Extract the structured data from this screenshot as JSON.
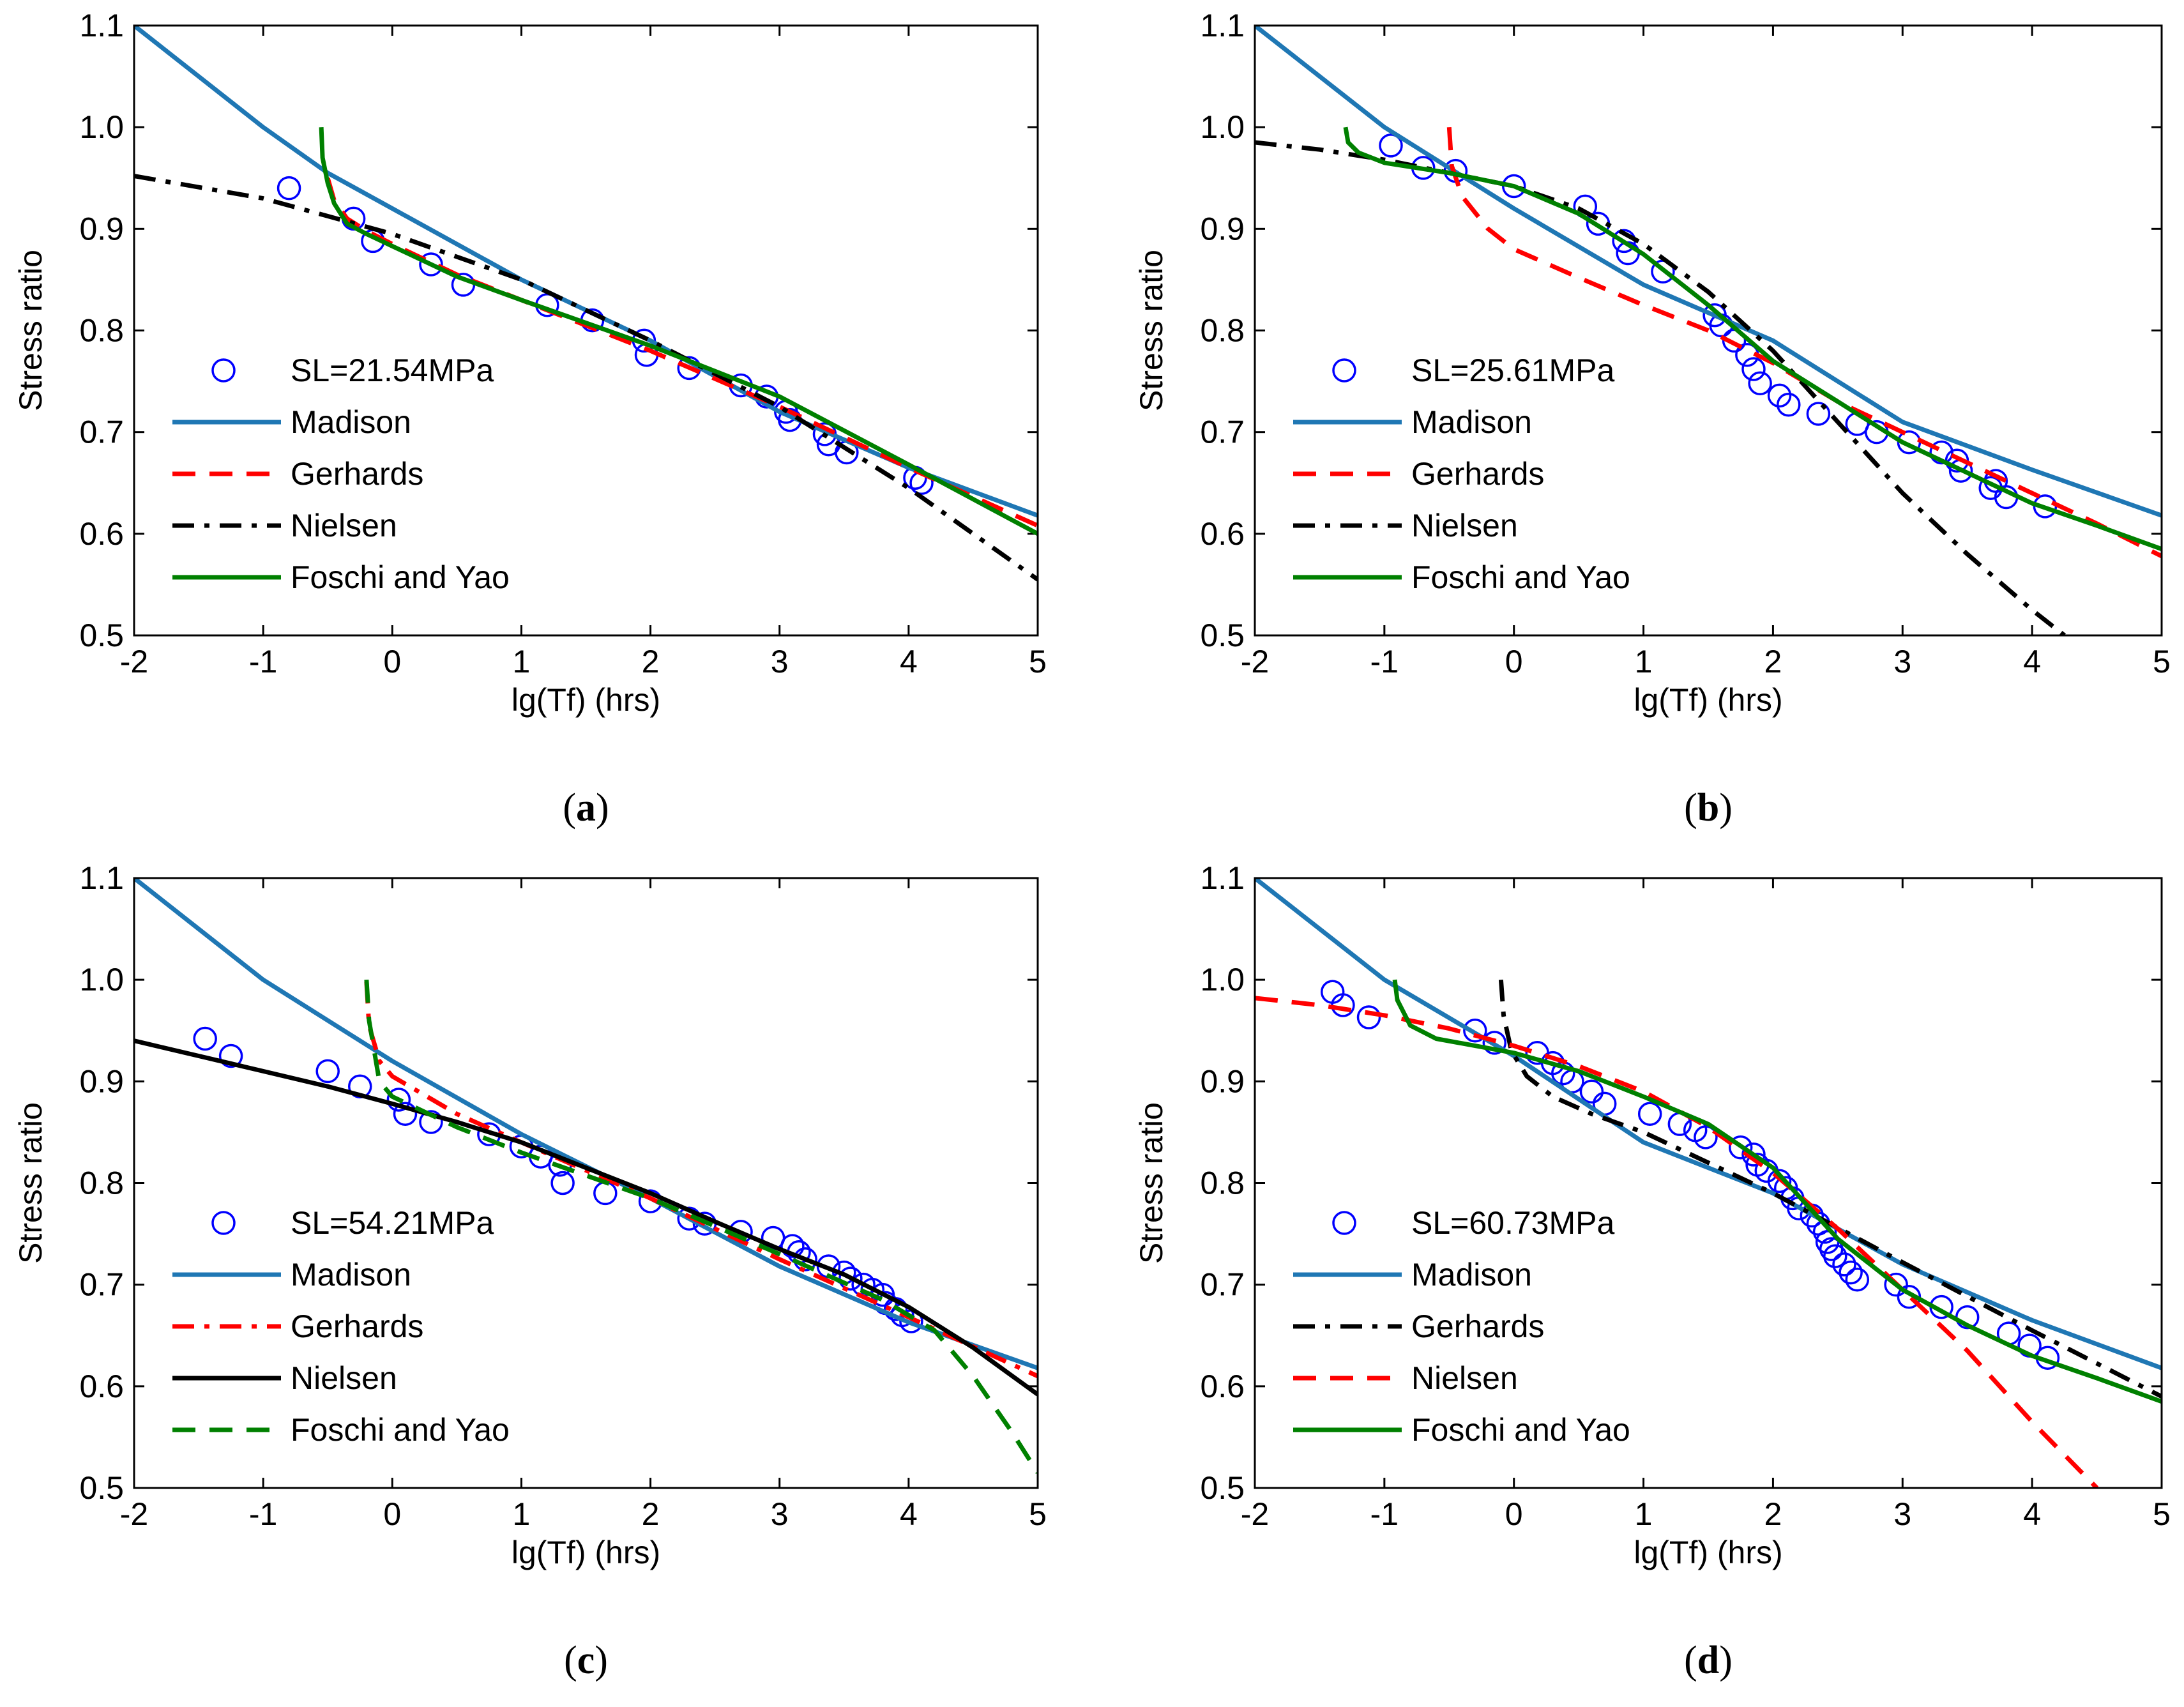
{
  "styles": {
    "circle": {
      "kind": "marker",
      "color": "#0000ff"
    },
    "solid_blue": {
      "kind": "line",
      "color": "#1f77b4",
      "dash": "solid"
    },
    "dashed_red": {
      "kind": "line",
      "color": "#ff0000",
      "dash": "dashed"
    },
    "dashdot_black": {
      "kind": "line",
      "color": "#000000",
      "dash": "dashdot"
    },
    "solid_green": {
      "kind": "line",
      "color": "#008000",
      "dash": "solid"
    },
    "dashdot_red": {
      "kind": "line",
      "color": "#ff0000",
      "dash": "dashdot"
    },
    "solid_black": {
      "kind": "line",
      "color": "#000000",
      "dash": "solid"
    },
    "dashed_green": {
      "kind": "line",
      "color": "#008000",
      "dash": "dashed"
    }
  },
  "chart_data": [
    {
      "type": "line",
      "panel": "(a)",
      "panel_letter": "a",
      "xlabel": "lg(Tf) (hrs)",
      "ylabel": "Stress ratio",
      "xlim": [
        -2,
        5
      ],
      "ylim": [
        0.5,
        1.1
      ],
      "xticks": [
        "-2",
        "-1",
        "0",
        "1",
        "2",
        "3",
        "4",
        "5"
      ],
      "yticks": [
        "0.5",
        "0.6",
        "0.7",
        "0.8",
        "0.9",
        "1.0",
        "1.1"
      ],
      "legend_position": "lower-left",
      "series": [
        {
          "name": "SL=21.54MPa",
          "type": "scatter",
          "style": "circle",
          "x": [
            -0.8,
            -0.3,
            -0.15,
            0.3,
            0.55,
            1.2,
            1.55,
            1.95,
            1.97,
            2.3,
            2.7,
            2.9,
            3.05,
            3.08,
            3.35,
            3.38,
            3.52,
            4.05,
            4.1
          ],
          "y": [
            0.94,
            0.91,
            0.888,
            0.865,
            0.845,
            0.825,
            0.81,
            0.79,
            0.776,
            0.763,
            0.746,
            0.735,
            0.72,
            0.712,
            0.698,
            0.688,
            0.68,
            0.655,
            0.65
          ]
        },
        {
          "name": "Madison",
          "type": "line",
          "style": "solid_blue",
          "x": [
            -2,
            -1,
            -0.5,
            0,
            1,
            2,
            3,
            4,
            5
          ],
          "y": [
            1.1,
            1.0,
            0.955,
            0.92,
            0.85,
            0.79,
            0.72,
            0.665,
            0.618
          ]
        },
        {
          "name": "Gerhards",
          "type": "line",
          "style": "dashed_red",
          "x": [
            -0.5,
            -0.45,
            -0.35,
            -0.2,
            0,
            0.5,
            1,
            2,
            3,
            4,
            5
          ],
          "y": [
            0.95,
            0.928,
            0.91,
            0.898,
            0.885,
            0.855,
            0.83,
            0.78,
            0.725,
            0.665,
            0.608
          ]
        },
        {
          "name": "Nielsen",
          "type": "line",
          "style": "dashdot_black",
          "x": [
            -2,
            -1,
            0,
            1,
            2,
            3,
            4,
            5
          ],
          "y": [
            0.952,
            0.93,
            0.895,
            0.85,
            0.79,
            0.725,
            0.645,
            0.555
          ]
        },
        {
          "name": "Foschi and Yao",
          "type": "line",
          "style": "solid_green",
          "x": [
            -0.55,
            -0.54,
            -0.5,
            -0.45,
            -0.35,
            -0.2,
            0,
            0.5,
            1,
            2,
            3,
            4,
            5
          ],
          "y": [
            1.0,
            0.97,
            0.945,
            0.925,
            0.905,
            0.895,
            0.883,
            0.853,
            0.83,
            0.785,
            0.735,
            0.668,
            0.6
          ]
        }
      ]
    },
    {
      "type": "line",
      "panel": "(b)",
      "panel_letter": "b",
      "xlabel": "lg(Tf) (hrs)",
      "ylabel": "Stress ratio",
      "xlim": [
        -2,
        5
      ],
      "ylim": [
        0.5,
        1.1
      ],
      "xticks": [
        "-2",
        "-1",
        "0",
        "1",
        "2",
        "3",
        "4",
        "5"
      ],
      "yticks": [
        "0.5",
        "0.6",
        "0.7",
        "0.8",
        "0.9",
        "1.0",
        "1.1"
      ],
      "legend_position": "lower-left",
      "series": [
        {
          "name": "SL=25.61MPa",
          "type": "scatter",
          "style": "circle",
          "x": [
            -0.95,
            -0.7,
            -0.45,
            0,
            0.55,
            0.65,
            0.85,
            0.88,
            1.15,
            1.55,
            1.6,
            1.7,
            1.8,
            1.85,
            1.9,
            2.05,
            2.12,
            2.35,
            2.65,
            2.8,
            3.05,
            3.3,
            3.42,
            3.45,
            3.68,
            3.72,
            3.8,
            4.1
          ],
          "y": [
            0.982,
            0.96,
            0.957,
            0.942,
            0.922,
            0.905,
            0.888,
            0.876,
            0.858,
            0.815,
            0.805,
            0.79,
            0.776,
            0.762,
            0.748,
            0.736,
            0.727,
            0.718,
            0.708,
            0.7,
            0.69,
            0.68,
            0.672,
            0.662,
            0.645,
            0.652,
            0.636,
            0.627
          ]
        },
        {
          "name": "Madison",
          "type": "line",
          "style": "solid_blue",
          "x": [
            -2,
            -1,
            0,
            1,
            2,
            3,
            4,
            5
          ],
          "y": [
            1.1,
            1.0,
            0.92,
            0.845,
            0.79,
            0.71,
            0.663,
            0.618
          ]
        },
        {
          "name": "Gerhards",
          "type": "line",
          "style": "dashed_red",
          "x": [
            -0.5,
            -0.48,
            -0.4,
            -0.2,
            0,
            0.5,
            1,
            1.5,
            2,
            2.5,
            3,
            3.5,
            4,
            4.5,
            5
          ],
          "y": [
            1.0,
            0.962,
            0.932,
            0.9,
            0.88,
            0.852,
            0.825,
            0.8,
            0.768,
            0.73,
            0.7,
            0.67,
            0.64,
            0.61,
            0.578
          ]
        },
        {
          "name": "Nielsen",
          "type": "line",
          "style": "dashdot_black",
          "x": [
            -2,
            -1.5,
            -1,
            -0.5,
            0,
            0.5,
            1,
            1.5,
            2,
            2.5,
            3,
            3.5,
            4,
            4.25
          ],
          "y": [
            0.985,
            0.978,
            0.968,
            0.955,
            0.942,
            0.92,
            0.885,
            0.838,
            0.78,
            0.71,
            0.64,
            0.58,
            0.525,
            0.5
          ]
        },
        {
          "name": "Foschi and Yao",
          "type": "line",
          "style": "solid_green",
          "x": [
            -1.3,
            -1.28,
            -1.2,
            -1,
            -0.5,
            0,
            0.5,
            1,
            1.5,
            2,
            2.5,
            3,
            3.5,
            4,
            4.5,
            5
          ],
          "y": [
            1.0,
            0.985,
            0.975,
            0.965,
            0.955,
            0.942,
            0.915,
            0.875,
            0.825,
            0.77,
            0.73,
            0.69,
            0.66,
            0.63,
            0.608,
            0.585
          ]
        }
      ]
    },
    {
      "type": "line",
      "panel": "(c)",
      "panel_letter": "c",
      "xlabel": "lg(Tf) (hrs)",
      "ylabel": "Stress ratio",
      "xlim": [
        -2,
        5
      ],
      "ylim": [
        0.5,
        1.1
      ],
      "xticks": [
        "-2",
        "-1",
        "0",
        "1",
        "2",
        "3",
        "4",
        "5"
      ],
      "yticks": [
        "0.5",
        "0.6",
        "0.7",
        "0.8",
        "0.9",
        "1.0",
        "1.1"
      ],
      "legend_position": "lower-left",
      "series": [
        {
          "name": "SL=54.21MPa",
          "type": "scatter",
          "style": "circle",
          "x": [
            -1.45,
            -1.25,
            -0.5,
            -0.25,
            0.05,
            0.1,
            0.3,
            0.75,
            1.0,
            1.15,
            1.3,
            1.32,
            1.65,
            2.0,
            2.3,
            2.42,
            2.7,
            2.95,
            3.1,
            3.15,
            3.2,
            3.38,
            3.5,
            3.55,
            3.65,
            3.72,
            3.8,
            3.82,
            3.9,
            3.95,
            4.02
          ],
          "y": [
            0.942,
            0.925,
            0.91,
            0.895,
            0.882,
            0.868,
            0.86,
            0.848,
            0.836,
            0.826,
            0.818,
            0.8,
            0.79,
            0.782,
            0.765,
            0.76,
            0.752,
            0.746,
            0.738,
            0.732,
            0.725,
            0.718,
            0.712,
            0.706,
            0.7,
            0.695,
            0.69,
            0.682,
            0.676,
            0.67,
            0.664
          ]
        },
        {
          "name": "Madison",
          "type": "line",
          "style": "solid_blue",
          "x": [
            -2,
            -1,
            0,
            1,
            2,
            3,
            4,
            5
          ],
          "y": [
            1.1,
            1.0,
            0.92,
            0.848,
            0.785,
            0.718,
            0.663,
            0.618
          ]
        },
        {
          "name": "Gerhards",
          "type": "line",
          "style": "dashdot_red",
          "x": [
            -0.2,
            -0.18,
            -0.1,
            0,
            0.5,
            1,
            2,
            3,
            4,
            5
          ],
          "y": [
            0.998,
            0.955,
            0.92,
            0.905,
            0.868,
            0.84,
            0.785,
            0.725,
            0.668,
            0.61
          ]
        },
        {
          "name": "Nielsen",
          "type": "line",
          "style": "solid_black",
          "x": [
            -2,
            -1.5,
            -1,
            -0.5,
            0,
            0.5,
            1,
            1.5,
            2,
            2.5,
            3,
            3.5,
            4,
            4.5,
            5
          ],
          "y": [
            0.94,
            0.925,
            0.91,
            0.895,
            0.878,
            0.86,
            0.84,
            0.815,
            0.79,
            0.762,
            0.735,
            0.71,
            0.678,
            0.638,
            0.592
          ]
        },
        {
          "name": "Foschi and Yao",
          "type": "line",
          "style": "dashed_green",
          "x": [
            -0.2,
            -0.18,
            -0.1,
            0,
            0.5,
            1,
            2,
            3,
            3.8,
            4.2,
            4.5,
            4.8,
            5
          ],
          "y": [
            1.0,
            0.96,
            0.9,
            0.885,
            0.855,
            0.83,
            0.785,
            0.73,
            0.685,
            0.655,
            0.61,
            0.555,
            0.515
          ]
        }
      ]
    },
    {
      "type": "line",
      "panel": "(d)",
      "panel_letter": "d",
      "xlabel": "lg(Tf) (hrs)",
      "ylabel": "Stress ratio",
      "xlim": [
        -2,
        5
      ],
      "ylim": [
        0.5,
        1.1
      ],
      "xticks": [
        "-2",
        "-1",
        "0",
        "1",
        "2",
        "3",
        "4",
        "5"
      ],
      "yticks": [
        "0.5",
        "0.6",
        "0.7",
        "0.8",
        "0.9",
        "1.0",
        "1.1"
      ],
      "legend_position": "lower-left",
      "series": [
        {
          "name": "SL=60.73MPa",
          "type": "scatter",
          "style": "circle",
          "x": [
            -1.4,
            -1.32,
            -1.12,
            -0.3,
            -0.15,
            0.18,
            0.3,
            0.38,
            0.45,
            0.6,
            0.7,
            1.05,
            1.28,
            1.4,
            1.48,
            1.75,
            1.85,
            1.88,
            1.95,
            2.05,
            2.1,
            2.15,
            2.2,
            2.3,
            2.35,
            2.4,
            2.42,
            2.45,
            2.48,
            2.55,
            2.6,
            2.65,
            2.95,
            3.05,
            3.3,
            3.5,
            3.82,
            3.98,
            4.12
          ],
          "y": [
            0.988,
            0.975,
            0.963,
            0.95,
            0.938,
            0.928,
            0.918,
            0.908,
            0.9,
            0.89,
            0.878,
            0.868,
            0.858,
            0.852,
            0.845,
            0.835,
            0.828,
            0.818,
            0.812,
            0.802,
            0.795,
            0.785,
            0.775,
            0.768,
            0.76,
            0.752,
            0.742,
            0.735,
            0.728,
            0.72,
            0.712,
            0.705,
            0.7,
            0.688,
            0.678,
            0.668,
            0.652,
            0.64,
            0.628
          ]
        },
        {
          "name": "Madison",
          "type": "line",
          "style": "solid_blue",
          "x": [
            -2,
            -1,
            0,
            1,
            2,
            3,
            4,
            5
          ],
          "y": [
            1.1,
            1.0,
            0.925,
            0.84,
            0.79,
            0.72,
            0.665,
            0.618
          ]
        },
        {
          "name": "Gerhards",
          "type": "line",
          "style": "dashdot_black",
          "x": [
            -0.1,
            -0.08,
            -0.02,
            0.1,
            0.3,
            0.6,
            1,
            2,
            3,
            4,
            5
          ],
          "y": [
            1.0,
            0.965,
            0.93,
            0.905,
            0.885,
            0.868,
            0.85,
            0.79,
            0.722,
            0.655,
            0.59
          ]
        },
        {
          "name": "Nielsen",
          "type": "line",
          "style": "dashed_red",
          "x": [
            -2,
            -1.5,
            -1,
            -0.5,
            0,
            0.5,
            1,
            1.5,
            2,
            2.5,
            3,
            3.5,
            4,
            4.5
          ],
          "y": [
            0.982,
            0.975,
            0.965,
            0.952,
            0.935,
            0.915,
            0.89,
            0.855,
            0.81,
            0.755,
            0.695,
            0.635,
            0.565,
            0.5
          ]
        },
        {
          "name": "Foschi and Yao",
          "type": "line",
          "style": "solid_green",
          "x": [
            -0.92,
            -0.9,
            -0.8,
            -0.6,
            -0.3,
            0,
            0.5,
            1,
            1.5,
            2,
            2.5,
            3,
            3.5,
            4,
            4.5,
            5
          ],
          "y": [
            1.0,
            0.98,
            0.955,
            0.942,
            0.935,
            0.928,
            0.91,
            0.885,
            0.858,
            0.815,
            0.745,
            0.695,
            0.66,
            0.63,
            0.608,
            0.585
          ]
        }
      ]
    }
  ]
}
